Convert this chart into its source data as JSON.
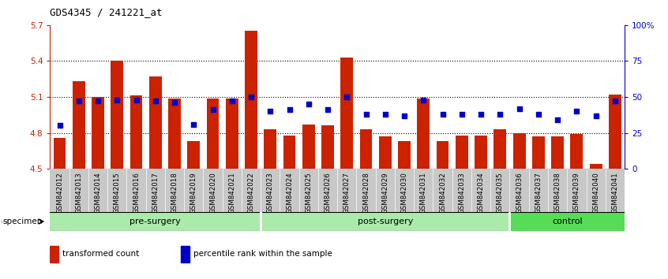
{
  "title": "GDS4345 / 241221_at",
  "samples": [
    "GSM842012",
    "GSM842013",
    "GSM842014",
    "GSM842015",
    "GSM842016",
    "GSM842017",
    "GSM842018",
    "GSM842019",
    "GSM842020",
    "GSM842021",
    "GSM842022",
    "GSM842023",
    "GSM842024",
    "GSM842025",
    "GSM842026",
    "GSM842027",
    "GSM842028",
    "GSM842029",
    "GSM842030",
    "GSM842031",
    "GSM842032",
    "GSM842033",
    "GSM842034",
    "GSM842035",
    "GSM842036",
    "GSM842037",
    "GSM842038",
    "GSM842039",
    "GSM842040",
    "GSM842041"
  ],
  "bar_values": [
    4.76,
    5.23,
    5.1,
    5.4,
    5.11,
    5.27,
    5.09,
    4.73,
    5.09,
    5.09,
    5.65,
    4.83,
    4.78,
    4.87,
    4.86,
    5.43,
    4.83,
    4.77,
    4.73,
    5.09,
    4.73,
    4.78,
    4.78,
    4.83,
    4.8,
    4.77,
    4.77,
    4.79,
    4.54,
    5.12
  ],
  "percentile_values": [
    30,
    47,
    47,
    48,
    48,
    47,
    46,
    31,
    41,
    47,
    50,
    40,
    41,
    45,
    41,
    50,
    38,
    38,
    37,
    48,
    38,
    38,
    38,
    38,
    42,
    38,
    34,
    40,
    37,
    47
  ],
  "groups": [
    {
      "name": "pre-surgery",
      "start": 0,
      "end": 11
    },
    {
      "name": "post-surgery",
      "start": 11,
      "end": 24
    },
    {
      "name": "control",
      "start": 24,
      "end": 30
    }
  ],
  "group_colors": {
    "pre-surgery": "#AAEAAA",
    "post-surgery": "#AAEAAA",
    "control": "#55DD55"
  },
  "ymin": 4.5,
  "ymax": 5.7,
  "yticks": [
    4.5,
    4.8,
    5.1,
    5.4,
    5.7
  ],
  "ytick_labels": [
    "4.5",
    "4.8",
    "5.1",
    "5.4",
    "5.7"
  ],
  "y2min": 0,
  "y2max": 100,
  "y2ticks": [
    0,
    25,
    50,
    75,
    100
  ],
  "y2tick_labels": [
    "0",
    "25",
    "50",
    "75",
    "100%"
  ],
  "bar_color": "#CC2200",
  "dot_color": "#0000CC",
  "bg_color": "#FFFFFF",
  "axis_color_left": "#CC2200",
  "axis_color_right": "#0000CC",
  "xtick_bg": "#C8C8C8",
  "legend_items": [
    {
      "label": "transformed count",
      "color": "#CC2200"
    },
    {
      "label": "percentile rank within the sample",
      "color": "#0000CC"
    }
  ]
}
